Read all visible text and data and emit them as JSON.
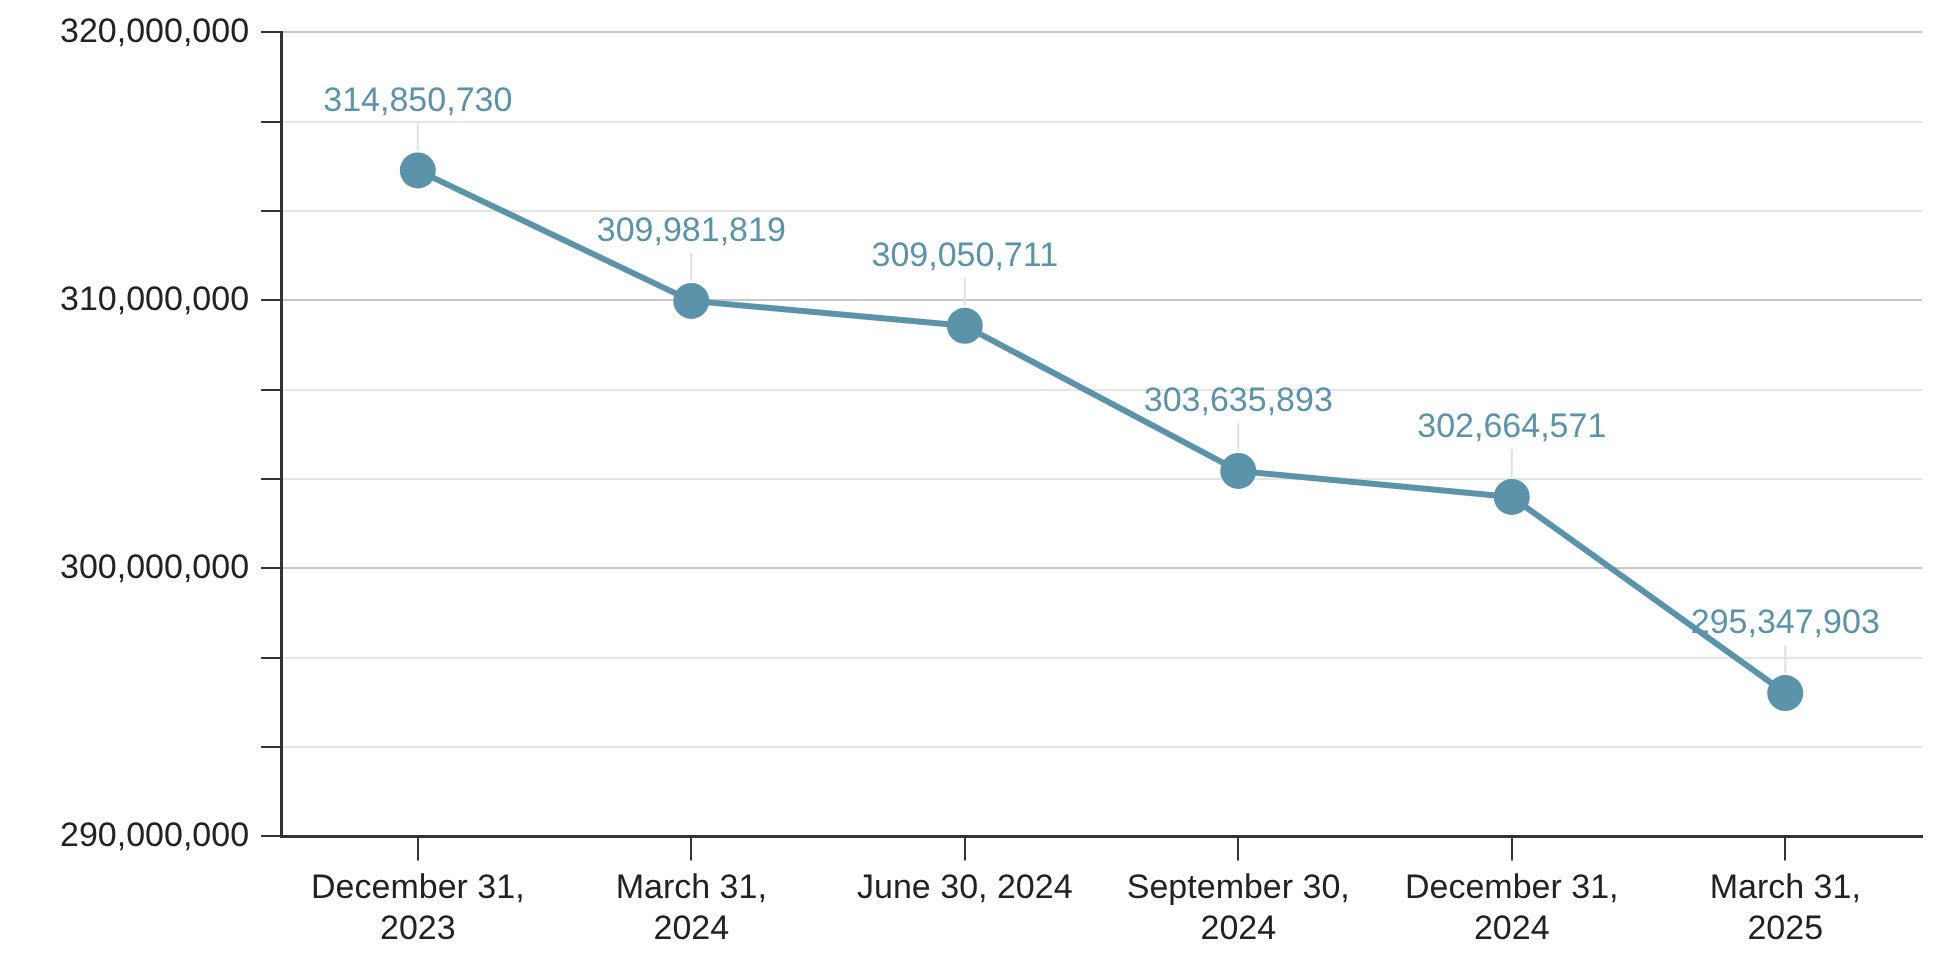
{
  "chart_data": {
    "type": "line",
    "categories": [
      "December 31, 2023",
      "March 31, 2024",
      "June 30, 2024",
      "September 30, 2024",
      "December 31, 2024",
      "March 31, 2025"
    ],
    "series": [
      {
        "color": "#5b93ab",
        "values": [
          314850730,
          309981819,
          309050711,
          303635893,
          302664571,
          295347903
        ],
        "value_labels": [
          "314,850,730",
          "309,981,819",
          "309,050,711",
          "303,635,893",
          "302,664,571",
          "295,347,903"
        ]
      }
    ],
    "ylim": [
      290000000,
      320000000
    ],
    "yticks": [
      {
        "value": 290000000,
        "label": "290,000,000"
      },
      {
        "value": 293333333,
        "label": null
      },
      {
        "value": 296666667,
        "label": null
      },
      {
        "value": 300000000,
        "label": "300,000,000"
      },
      {
        "value": 303333333,
        "label": null
      },
      {
        "value": 306666667,
        "label": null
      },
      {
        "value": 310000000,
        "label": "310,000,000"
      },
      {
        "value": 313333333,
        "label": null
      },
      {
        "value": 316666667,
        "label": null
      },
      {
        "value": 320000000,
        "label": "320,000,000"
      }
    ],
    "grid": "y",
    "marker": "circle",
    "line_style": "solid"
  }
}
